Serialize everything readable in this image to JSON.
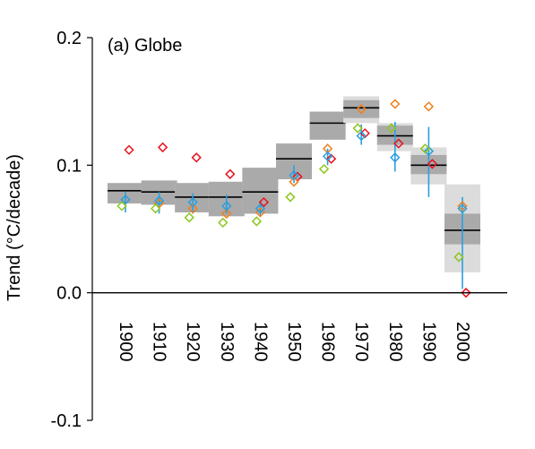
{
  "chart_data": {
    "type": "scatter",
    "annotation": "(a) Globe",
    "ylabel": "Trend (°C/decade)",
    "ylim": [
      -0.1,
      0.2
    ],
    "yticks": [
      "0.2",
      "0.1",
      "0.0",
      "-0.1"
    ],
    "categories": [
      "1900",
      "1910",
      "1920",
      "1930",
      "1940",
      "1950",
      "1960",
      "1970",
      "1980",
      "1990",
      "2000"
    ],
    "ensemble": {
      "median": [
        0.08,
        0.079,
        0.075,
        0.075,
        0.079,
        0.105,
        0.133,
        0.145,
        0.123,
        0.1,
        0.049
      ],
      "inner": [
        [
          0.07,
          0.086
        ],
        [
          0.069,
          0.088
        ],
        [
          0.063,
          0.086
        ],
        [
          0.06,
          0.087
        ],
        [
          0.062,
          0.098
        ],
        [
          0.089,
          0.117
        ],
        [
          0.12,
          0.142
        ],
        [
          0.137,
          0.151
        ],
        [
          0.116,
          0.131
        ],
        [
          0.093,
          0.108
        ],
        [
          0.038,
          0.062
        ]
      ],
      "outer": [
        [
          0.07,
          0.086
        ],
        [
          0.069,
          0.088
        ],
        [
          0.063,
          0.086
        ],
        [
          0.06,
          0.087
        ],
        [
          0.062,
          0.098
        ],
        [
          0.089,
          0.117
        ],
        [
          0.12,
          0.142
        ],
        [
          0.133,
          0.154
        ],
        [
          0.111,
          0.133
        ],
        [
          0.085,
          0.114
        ],
        [
          0.016,
          0.085
        ]
      ],
      "colors": {
        "inner": "#aaaaaa",
        "outer": "#dcdcdc",
        "median": "#000000"
      }
    },
    "series": [
      {
        "color": "#e8121e",
        "values": [
          0.112,
          0.114,
          0.106,
          0.093,
          0.071,
          0.091,
          0.105,
          0.125,
          0.117,
          0.101,
          0.0
        ]
      },
      {
        "color": "#f07f1a",
        "values": [
          0.073,
          0.07,
          0.066,
          0.062,
          0.063,
          0.087,
          0.113,
          0.144,
          0.148,
          0.146,
          0.068
        ]
      },
      {
        "color": "#2a9fdf",
        "values": [
          0.073,
          0.072,
          0.071,
          0.068,
          0.066,
          0.092,
          0.107,
          0.123,
          0.106,
          0.111,
          0.066
        ],
        "error": [
          [
            0.063,
            0.079
          ],
          [
            0.062,
            0.079
          ],
          [
            0.062,
            0.078
          ],
          [
            0.062,
            0.077
          ],
          [
            0.06,
            0.072
          ],
          [
            0.086,
            0.1
          ],
          [
            0.1,
            0.113
          ],
          [
            0.116,
            0.132
          ],
          [
            0.095,
            0.134
          ],
          [
            0.075,
            0.13
          ],
          [
            0.003,
            0.075
          ]
        ]
      },
      {
        "color": "#8cc61e",
        "values": [
          0.068,
          0.066,
          0.059,
          0.055,
          0.056,
          0.075,
          0.097,
          0.129,
          0.129,
          0.113,
          0.028
        ]
      }
    ],
    "zero_line": true,
    "grid": false
  }
}
